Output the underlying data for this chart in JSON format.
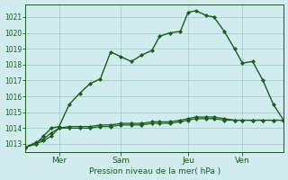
{
  "background_color": "#d0ecee",
  "grid_color": "#9ec8c8",
  "line_color": "#1a5c1a",
  "ylim": [
    1012.5,
    1021.8
  ],
  "ylabel_ticks": [
    1013,
    1014,
    1015,
    1016,
    1017,
    1018,
    1019,
    1020,
    1021
  ],
  "xlabel": "Pression niveau de la mer( hPa )",
  "xtick_labels": [
    "Mer",
    "Sam",
    "Jeu",
    "Ven"
  ],
  "xtick_positions": [
    0.13,
    0.37,
    0.63,
    0.84
  ],
  "line1_x": [
    0.0,
    0.04,
    0.07,
    0.1,
    0.13,
    0.17,
    0.21,
    0.25,
    0.29,
    0.33,
    0.37,
    0.41,
    0.45,
    0.49,
    0.52,
    0.56,
    0.6,
    0.63,
    0.66,
    0.7,
    0.73,
    0.77,
    0.81,
    0.84,
    0.88,
    0.92,
    0.96,
    1.0
  ],
  "line1_y": [
    1012.8,
    1013.0,
    1013.5,
    1014.0,
    1014.1,
    1015.5,
    1016.2,
    1016.8,
    1017.1,
    1018.8,
    1018.5,
    1018.2,
    1018.6,
    1018.9,
    1019.8,
    1020.0,
    1020.1,
    1021.3,
    1021.4,
    1021.1,
    1021.0,
    1020.1,
    1019.0,
    1018.1,
    1018.2,
    1017.0,
    1015.5,
    1014.5
  ],
  "line2_x": [
    0.0,
    0.04,
    0.07,
    0.1,
    0.13,
    0.17,
    0.21,
    0.25,
    0.29,
    0.33,
    0.37,
    0.41,
    0.45,
    0.49,
    0.52,
    0.56,
    0.6,
    0.63,
    0.66,
    0.7,
    0.73,
    0.77,
    0.81,
    0.84,
    0.88,
    0.92,
    0.96,
    1.0
  ],
  "line2_y": [
    1012.8,
    1013.0,
    1013.2,
    1013.5,
    1014.0,
    1014.0,
    1014.0,
    1014.0,
    1014.1,
    1014.1,
    1014.2,
    1014.2,
    1014.2,
    1014.3,
    1014.3,
    1014.3,
    1014.4,
    1014.5,
    1014.6,
    1014.6,
    1014.6,
    1014.5,
    1014.5,
    1014.5,
    1014.5,
    1014.5,
    1014.5,
    1014.5
  ],
  "line3_x": [
    0.0,
    0.04,
    0.07,
    0.1,
    0.13,
    0.17,
    0.21,
    0.25,
    0.29,
    0.33,
    0.37,
    0.41,
    0.45,
    0.49,
    0.52,
    0.56,
    0.6,
    0.63,
    0.66,
    0.7,
    0.73,
    0.77,
    0.81,
    0.84,
    0.88,
    0.92,
    0.96,
    1.0
  ],
  "line3_y": [
    1012.8,
    1013.1,
    1013.3,
    1013.7,
    1014.0,
    1014.1,
    1014.1,
    1014.1,
    1014.2,
    1014.2,
    1014.3,
    1014.3,
    1014.3,
    1014.4,
    1014.4,
    1014.4,
    1014.5,
    1014.6,
    1014.7,
    1014.7,
    1014.7,
    1014.6,
    1014.5,
    1014.5,
    1014.5,
    1014.5,
    1014.5,
    1014.5
  ]
}
